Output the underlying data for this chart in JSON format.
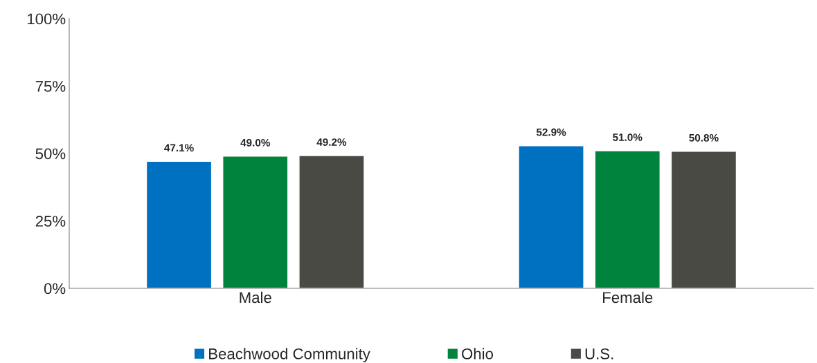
{
  "chart_data": {
    "type": "bar",
    "categories": [
      "Male",
      "Female"
    ],
    "series": [
      {
        "name": "Beachwood Community",
        "color": "#0070c0",
        "values": [
          47.1,
          52.9
        ]
      },
      {
        "name": "Ohio",
        "color": "#00843d",
        "values": [
          49.0,
          51.0
        ]
      },
      {
        "name": "U.S.",
        "color": "#4a4a45",
        "values": [
          49.2,
          50.8
        ]
      }
    ],
    "ylim": [
      0,
      100
    ],
    "yticks": [
      {
        "value": 0,
        "label": "0%"
      },
      {
        "value": 25,
        "label": "25%"
      },
      {
        "value": 50,
        "label": "50%"
      },
      {
        "value": 75,
        "label": "75%"
      },
      {
        "value": 100,
        "label": "100%"
      }
    ],
    "value_labels": [
      [
        "47.1%",
        "52.9%"
      ],
      [
        "49.0%",
        "51.0%"
      ],
      [
        "49.2%",
        "50.8%"
      ]
    ],
    "legend": "bottom",
    "grid": false
  }
}
